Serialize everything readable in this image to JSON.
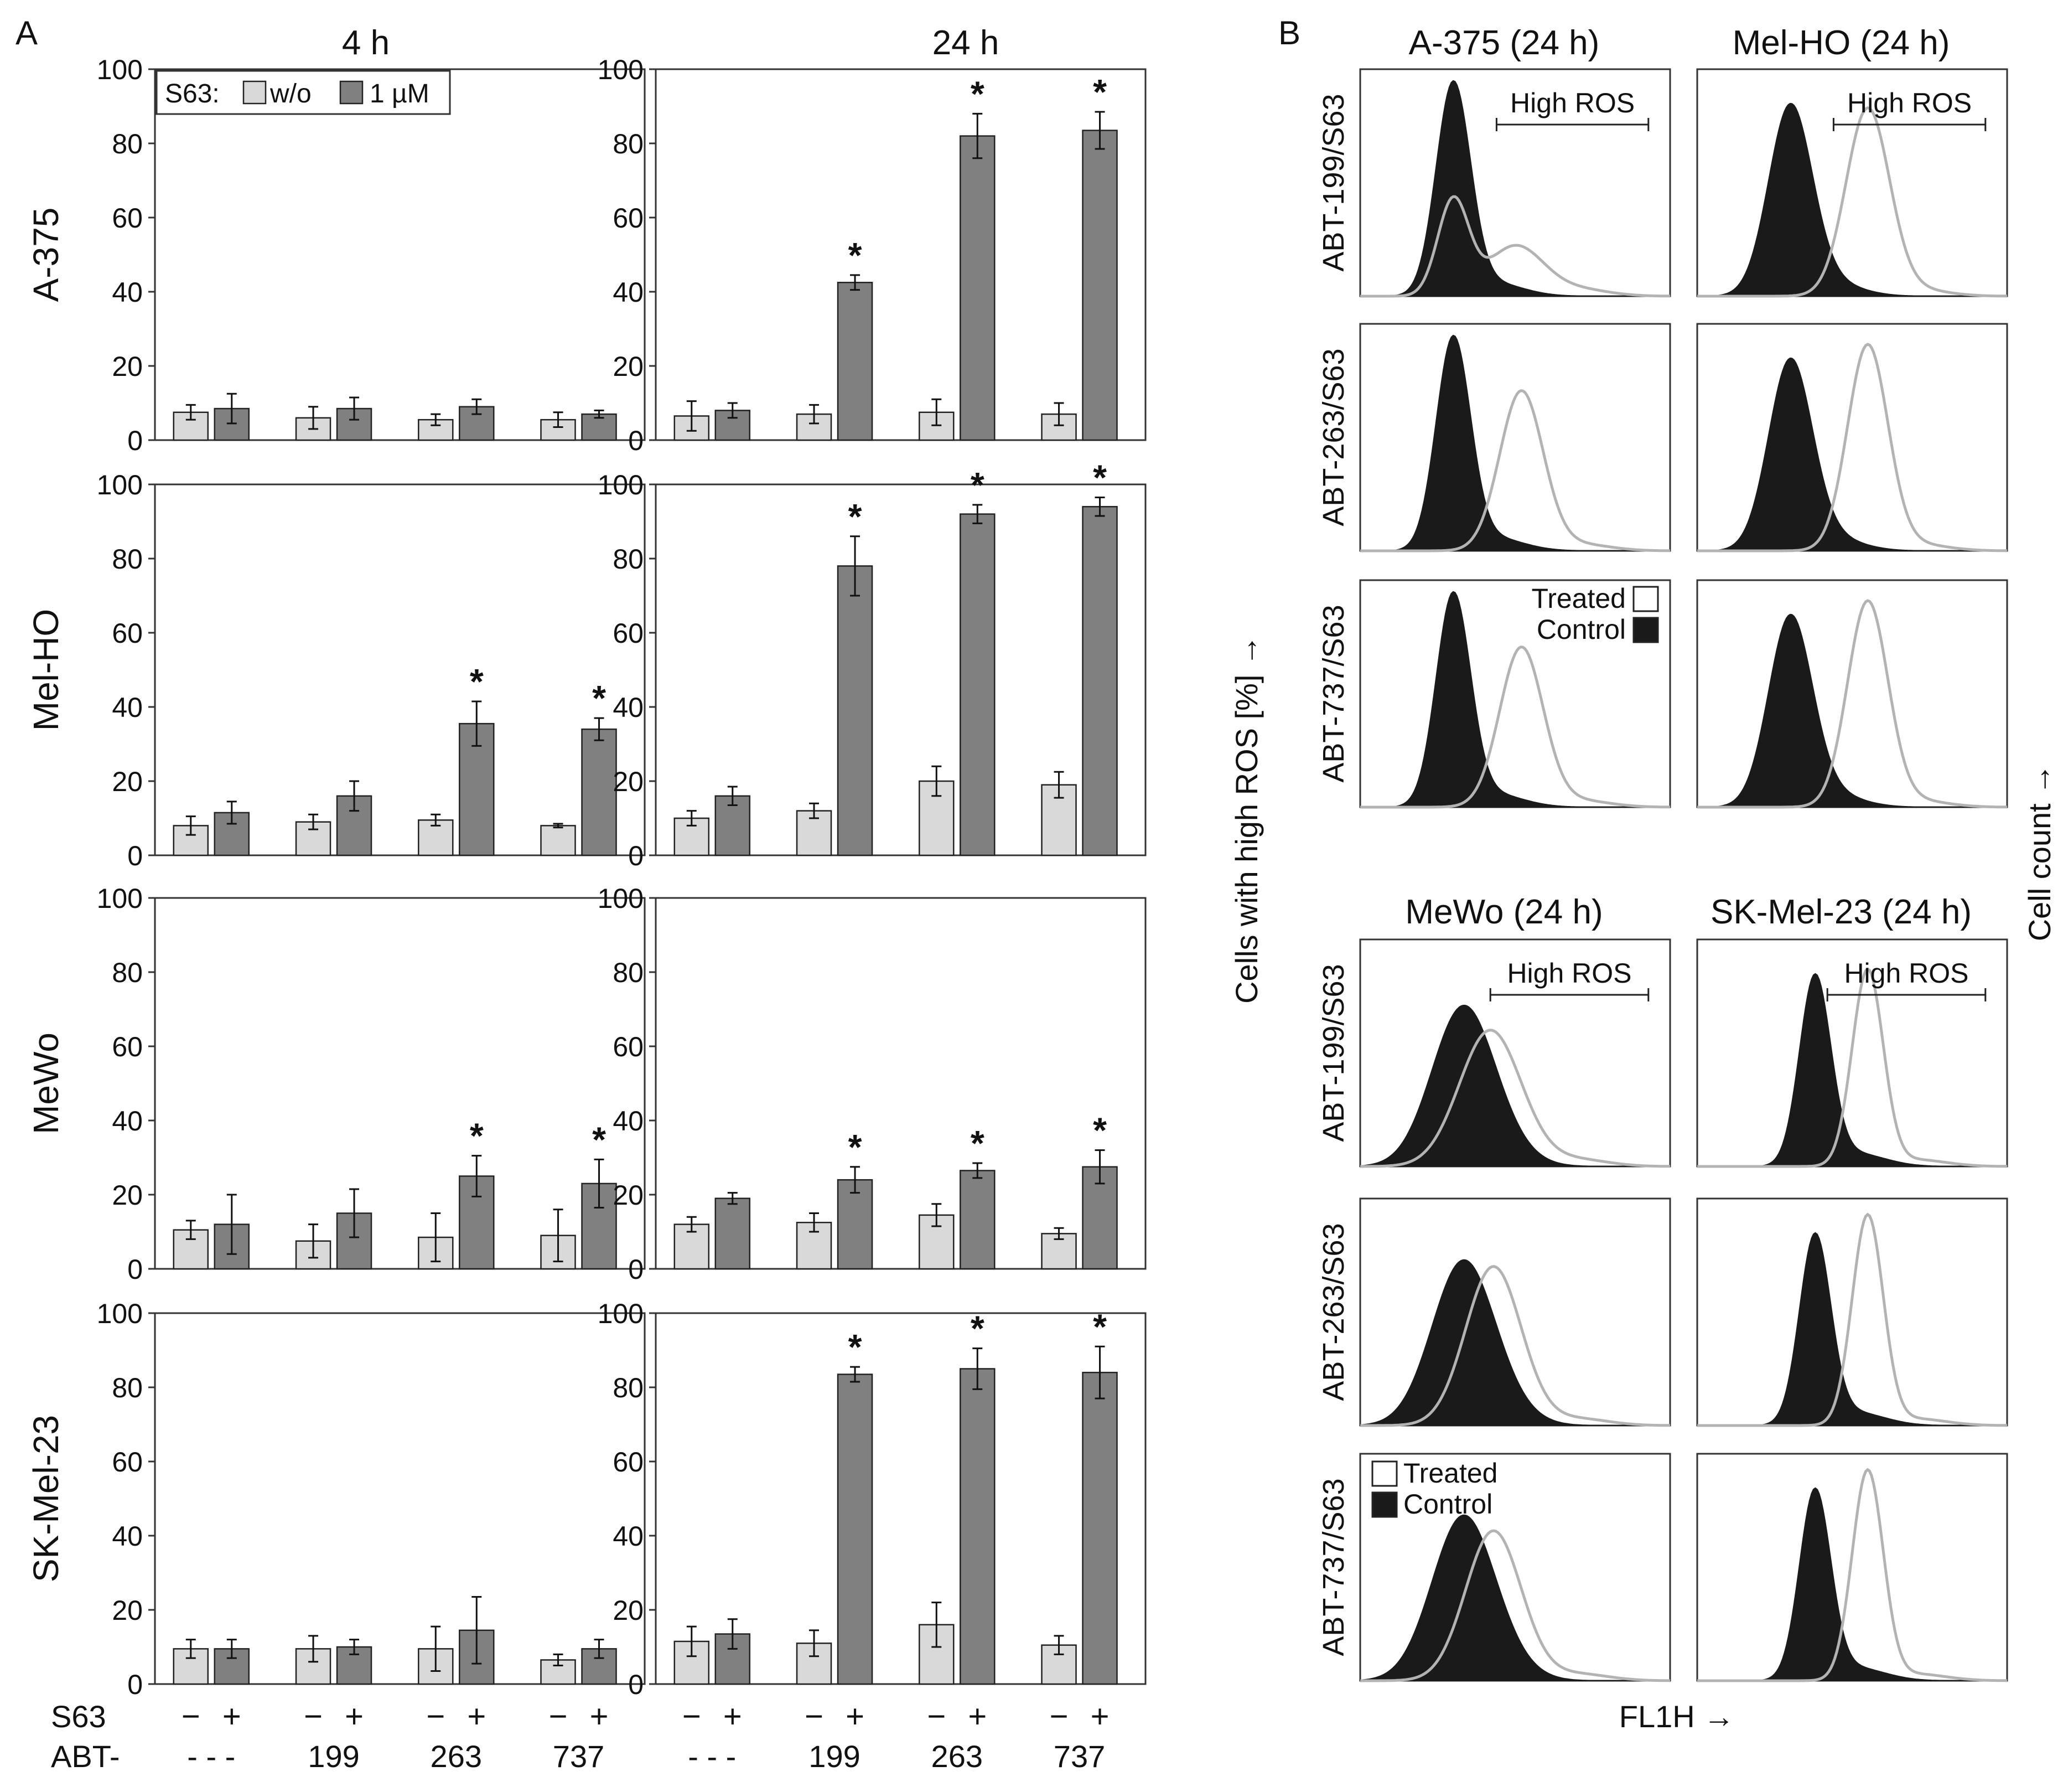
{
  "figure": {
    "panel_a_letter": "A",
    "panel_b_letter": "B",
    "colors": {
      "light_bar": "#d9d9d9",
      "dark_bar": "#808080",
      "control_fill": "#1a1a1a",
      "treated_line": "#b3b3b3",
      "axis": "#333333"
    }
  },
  "panel_a": {
    "time_labels": [
      "4 h",
      "24 h"
    ],
    "row_labels": [
      "A-375",
      "Mel-HO",
      "MeWo",
      "SK-Mel-23"
    ],
    "y_axis_title": "Cells with high ROS  [%]  →",
    "legend": {
      "prefix": "S63:",
      "wo": "w/o",
      "um": "1 µM"
    },
    "s63_row": {
      "label": "S63",
      "minus": "−",
      "plus": "+"
    },
    "abt_row": {
      "label": "ABT-",
      "groups": [
        "- - -",
        "199",
        "263",
        "737"
      ]
    }
  },
  "chart_data": [
    {
      "type": "bar",
      "cell_line": "A-375",
      "time": "4 h",
      "categories": [
        "---",
        "199",
        "263",
        "737"
      ],
      "ylim": [
        0,
        100
      ],
      "yticks": [
        0,
        20,
        40,
        60,
        80,
        100
      ],
      "series": [
        {
          "name": "w/o",
          "values": [
            7.5,
            6,
            5.5,
            5.5
          ],
          "errors": [
            2,
            3,
            1.5,
            2
          ]
        },
        {
          "name": "1 µM",
          "values": [
            8.5,
            8.5,
            9,
            7
          ],
          "errors": [
            4,
            3,
            2,
            1
          ]
        }
      ],
      "significant": [
        false,
        false,
        false,
        false
      ]
    },
    {
      "type": "bar",
      "cell_line": "A-375",
      "time": "24 h",
      "categories": [
        "---",
        "199",
        "263",
        "737"
      ],
      "ylim": [
        0,
        100
      ],
      "yticks": [
        0,
        20,
        40,
        60,
        80,
        100
      ],
      "series": [
        {
          "name": "w/o",
          "values": [
            6.5,
            7,
            7.5,
            7
          ],
          "errors": [
            4,
            2.5,
            3.5,
            3
          ]
        },
        {
          "name": "1 µM",
          "values": [
            8,
            42.5,
            82,
            83.5
          ],
          "errors": [
            2,
            2,
            6,
            5
          ]
        }
      ],
      "significant": [
        false,
        true,
        true,
        true
      ]
    },
    {
      "type": "bar",
      "cell_line": "Mel-HO",
      "time": "4 h",
      "categories": [
        "---",
        "199",
        "263",
        "737"
      ],
      "ylim": [
        0,
        100
      ],
      "yticks": [
        0,
        20,
        40,
        60,
        80,
        100
      ],
      "series": [
        {
          "name": "w/o",
          "values": [
            8,
            9,
            9.5,
            8
          ],
          "errors": [
            2.5,
            2,
            1.5,
            0.5
          ]
        },
        {
          "name": "1 µM",
          "values": [
            11.5,
            16,
            35.5,
            34
          ],
          "errors": [
            3,
            4,
            6,
            3
          ]
        }
      ],
      "significant": [
        false,
        false,
        true,
        true
      ]
    },
    {
      "type": "bar",
      "cell_line": "Mel-HO",
      "time": "24 h",
      "categories": [
        "---",
        "199",
        "263",
        "737"
      ],
      "ylim": [
        0,
        100
      ],
      "yticks": [
        0,
        20,
        40,
        60,
        80,
        100
      ],
      "series": [
        {
          "name": "w/o",
          "values": [
            10,
            12,
            20,
            19
          ],
          "errors": [
            2,
            2,
            4,
            3.5
          ]
        },
        {
          "name": "1 µM",
          "values": [
            16,
            78,
            92,
            94
          ],
          "errors": [
            2.5,
            8,
            2.5,
            2.5
          ]
        }
      ],
      "significant": [
        false,
        true,
        true,
        true
      ]
    },
    {
      "type": "bar",
      "cell_line": "MeWo",
      "time": "4 h",
      "categories": [
        "---",
        "199",
        "263",
        "737"
      ],
      "ylim": [
        0,
        100
      ],
      "yticks": [
        0,
        20,
        40,
        60,
        80,
        100
      ],
      "series": [
        {
          "name": "w/o",
          "values": [
            10.5,
            7.5,
            8.5,
            9
          ],
          "errors": [
            2.5,
            4.5,
            6.5,
            7
          ]
        },
        {
          "name": "1 µM",
          "values": [
            12,
            15,
            25,
            23
          ],
          "errors": [
            8,
            6.5,
            5.5,
            6.5
          ]
        }
      ],
      "significant": [
        false,
        false,
        true,
        true
      ]
    },
    {
      "type": "bar",
      "cell_line": "MeWo",
      "time": "24 h",
      "categories": [
        "---",
        "199",
        "263",
        "737"
      ],
      "ylim": [
        0,
        100
      ],
      "yticks": [
        0,
        20,
        40,
        60,
        80,
        100
      ],
      "series": [
        {
          "name": "w/o",
          "values": [
            12,
            12.5,
            14.5,
            9.5
          ],
          "errors": [
            2,
            2.5,
            3,
            1.5
          ]
        },
        {
          "name": "1 µM",
          "values": [
            19,
            24,
            26.5,
            27.5
          ],
          "errors": [
            1.5,
            3.5,
            2,
            4.5
          ]
        }
      ],
      "significant": [
        false,
        true,
        true,
        true
      ]
    },
    {
      "type": "bar",
      "cell_line": "SK-Mel-23",
      "time": "4 h",
      "categories": [
        "---",
        "199",
        "263",
        "737"
      ],
      "ylim": [
        0,
        100
      ],
      "yticks": [
        0,
        20,
        40,
        60,
        80,
        100
      ],
      "series": [
        {
          "name": "w/o",
          "values": [
            9.5,
            9.5,
            9.5,
            6.5
          ],
          "errors": [
            2.5,
            3.5,
            6,
            1.5
          ]
        },
        {
          "name": "1 µM",
          "values": [
            9.5,
            10,
            14.5,
            9.5
          ],
          "errors": [
            2.5,
            2,
            9,
            2.5
          ]
        }
      ],
      "significant": [
        false,
        false,
        false,
        false
      ]
    },
    {
      "type": "bar",
      "cell_line": "SK-Mel-23",
      "time": "24 h",
      "categories": [
        "---",
        "199",
        "263",
        "737"
      ],
      "ylim": [
        0,
        100
      ],
      "yticks": [
        0,
        20,
        40,
        60,
        80,
        100
      ],
      "series": [
        {
          "name": "w/o",
          "values": [
            11.5,
            11,
            16,
            10.5
          ],
          "errors": [
            4,
            3.5,
            6,
            2.5
          ]
        },
        {
          "name": "1 µM",
          "values": [
            13.5,
            83.5,
            85,
            84
          ],
          "errors": [
            4,
            2,
            5.5,
            7
          ]
        }
      ],
      "significant": [
        false,
        true,
        true,
        true
      ]
    }
  ],
  "panel_b": {
    "group_titles": [
      "A-375 (24 h)",
      "Mel-HO (24 h)",
      "MeWo (24 h)",
      "SK-Mel-23 (24 h)"
    ],
    "row_labels": [
      "ABT-199/S63",
      "ABT-263/S63",
      "ABT-737/S63"
    ],
    "gate_label": "High ROS",
    "legend": {
      "treated": "Treated",
      "control": "Control"
    },
    "x_axis_label": "FL1H →",
    "y_axis_label": "Cell count →",
    "histograms": [
      {
        "cell_line": "A-375",
        "row": "ABT-199/S63",
        "control": {
          "peak": 0.3,
          "width": 0.055,
          "height": 0.92
        },
        "treated": [
          {
            "peak": 0.3,
            "width": 0.05,
            "height": 0.42
          },
          {
            "peak": 0.5,
            "width": 0.09,
            "height": 0.22
          }
        ]
      },
      {
        "cell_line": "A-375",
        "row": "ABT-263/S63",
        "control": {
          "peak": 0.3,
          "width": 0.055,
          "height": 0.92
        },
        "treated": [
          {
            "peak": 0.52,
            "width": 0.07,
            "height": 0.7
          }
        ]
      },
      {
        "cell_line": "A-375",
        "row": "ABT-737/S63",
        "control": {
          "peak": 0.3,
          "width": 0.055,
          "height": 0.92
        },
        "treated": [
          {
            "peak": 0.52,
            "width": 0.07,
            "height": 0.7
          }
        ]
      },
      {
        "cell_line": "Mel-HO",
        "row": "ABT-199/S63",
        "control": {
          "peak": 0.3,
          "width": 0.07,
          "height": 0.82
        },
        "treated": [
          {
            "peak": 0.55,
            "width": 0.07,
            "height": 0.82
          }
        ]
      },
      {
        "cell_line": "Mel-HO",
        "row": "ABT-263/S63",
        "control": {
          "peak": 0.3,
          "width": 0.07,
          "height": 0.82
        },
        "treated": [
          {
            "peak": 0.55,
            "width": 0.065,
            "height": 0.9
          }
        ]
      },
      {
        "cell_line": "Mel-HO",
        "row": "ABT-737/S63",
        "control": {
          "peak": 0.3,
          "width": 0.07,
          "height": 0.82
        },
        "treated": [
          {
            "peak": 0.55,
            "width": 0.065,
            "height": 0.9
          }
        ]
      },
      {
        "cell_line": "MeWo",
        "row": "ABT-199/S63",
        "control": {
          "peak": 0.33,
          "width": 0.1,
          "height": 0.68
        },
        "treated": [
          {
            "peak": 0.42,
            "width": 0.1,
            "height": 0.6
          }
        ]
      },
      {
        "cell_line": "MeWo",
        "row": "ABT-263/S63",
        "control": {
          "peak": 0.33,
          "width": 0.1,
          "height": 0.7
        },
        "treated": [
          {
            "peak": 0.43,
            "width": 0.09,
            "height": 0.7
          }
        ]
      },
      {
        "cell_line": "MeWo",
        "row": "ABT-737/S63",
        "control": {
          "peak": 0.33,
          "width": 0.1,
          "height": 0.7
        },
        "treated": [
          {
            "peak": 0.43,
            "width": 0.09,
            "height": 0.66
          }
        ]
      },
      {
        "cell_line": "SK-Mel-23",
        "row": "ABT-199/S63",
        "control": {
          "peak": 0.38,
          "width": 0.05,
          "height": 0.82
        },
        "treated": [
          {
            "peak": 0.55,
            "width": 0.05,
            "height": 0.86
          }
        ]
      },
      {
        "cell_line": "SK-Mel-23",
        "row": "ABT-263/S63",
        "control": {
          "peak": 0.38,
          "width": 0.05,
          "height": 0.82
        },
        "treated": [
          {
            "peak": 0.55,
            "width": 0.05,
            "height": 0.92
          }
        ]
      },
      {
        "cell_line": "SK-Mel-23",
        "row": "ABT-737/S63",
        "control": {
          "peak": 0.38,
          "width": 0.05,
          "height": 0.82
        },
        "treated": [
          {
            "peak": 0.55,
            "width": 0.05,
            "height": 0.92
          }
        ]
      }
    ]
  }
}
